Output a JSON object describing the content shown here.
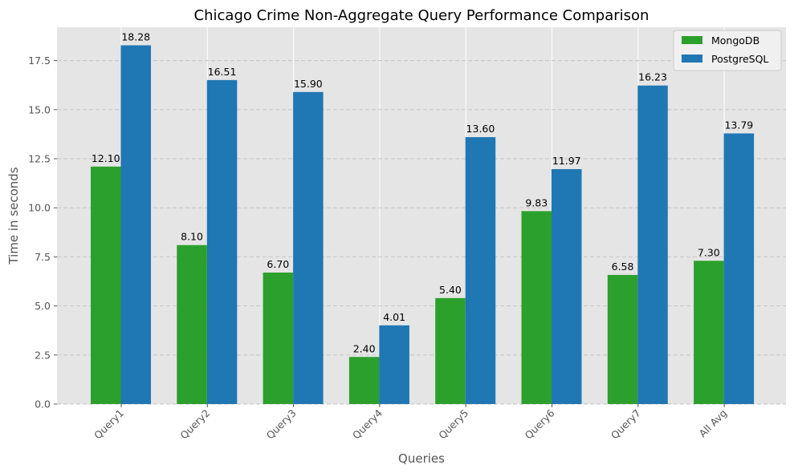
{
  "chart_data": {
    "type": "bar",
    "title": "Chicago Crime Non-Aggregate Query Performance Comparison",
    "xlabel": "Queries",
    "ylabel": "Time in seconds",
    "categories": [
      "Query1",
      "Query2",
      "Query3",
      "Query4",
      "Query5",
      "Query6",
      "Query7",
      "All Avg"
    ],
    "series": [
      {
        "name": "MongoDB",
        "color": "#2ca02c",
        "values": [
          12.1,
          8.1,
          6.7,
          2.4,
          5.4,
          9.83,
          6.58,
          7.3
        ],
        "labels": [
          "12.10",
          "8.10",
          "6.70",
          "2.40",
          "5.40",
          "9.83",
          "6.58",
          "7.30"
        ]
      },
      {
        "name": "PostgreSQL",
        "color": "#1f77b4",
        "values": [
          18.28,
          16.51,
          15.9,
          4.01,
          13.6,
          11.97,
          16.23,
          13.79
        ],
        "labels": [
          "18.28",
          "16.51",
          "15.90",
          "4.01",
          "13.60",
          "11.97",
          "16.23",
          "13.79"
        ]
      }
    ],
    "ylim": [
      0,
      19.2
    ],
    "yticks": [
      0.0,
      2.5,
      5.0,
      7.5,
      10.0,
      12.5,
      15.0,
      17.5
    ],
    "ytick_labels": [
      "0.0",
      "2.5",
      "5.0",
      "7.5",
      "10.0",
      "12.5",
      "15.0",
      "17.5"
    ],
    "xtick_rotation_deg": 45,
    "grid": true,
    "legend_position": "top-right",
    "background_color": "#e5e5e5",
    "grid_color": "#ffffff"
  }
}
